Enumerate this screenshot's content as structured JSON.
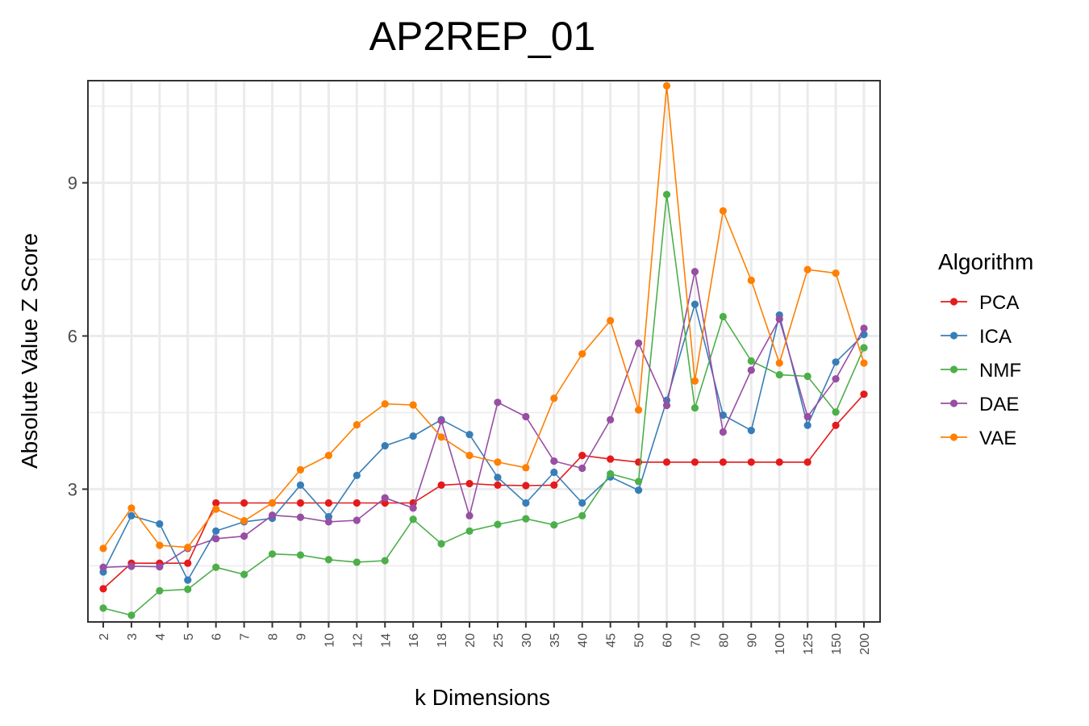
{
  "chart_data": {
    "type": "line",
    "title": "AP2REP_01",
    "xlabel": "k Dimensions",
    "ylabel": "Absolute Value Z Score",
    "categories": [
      "2",
      "3",
      "4",
      "5",
      "6",
      "7",
      "8",
      "9",
      "10",
      "12",
      "14",
      "16",
      "18",
      "20",
      "25",
      "30",
      "35",
      "40",
      "45",
      "50",
      "60",
      "70",
      "80",
      "90",
      "100",
      "125",
      "150",
      "200"
    ],
    "y_ticks": [
      3,
      6,
      9
    ],
    "ylim": [
      0.4,
      11.0
    ],
    "grid": true,
    "legend": {
      "title": "Algorithm",
      "position": "right"
    },
    "series": [
      {
        "name": "PCA",
        "color": "#E41A1C",
        "values": [
          1.05,
          1.55,
          1.55,
          1.55,
          2.73,
          2.73,
          2.73,
          2.73,
          2.73,
          2.73,
          2.73,
          2.73,
          3.08,
          3.11,
          3.08,
          3.07,
          3.08,
          3.66,
          3.59,
          3.53,
          3.53,
          3.53,
          3.53,
          3.53,
          3.53,
          3.53,
          4.25,
          4.86
        ]
      },
      {
        "name": "ICA",
        "color": "#377EB8",
        "values": [
          1.38,
          2.48,
          2.32,
          1.22,
          2.18,
          2.36,
          2.43,
          3.08,
          2.46,
          3.27,
          3.85,
          4.04,
          4.36,
          4.07,
          3.23,
          2.73,
          3.33,
          2.73,
          3.24,
          2.98,
          4.74,
          6.62,
          4.45,
          4.15,
          6.41,
          4.25,
          5.49,
          6.03
        ]
      },
      {
        "name": "NMF",
        "color": "#4DAF4A",
        "values": [
          0.67,
          0.53,
          1.01,
          1.04,
          1.47,
          1.33,
          1.73,
          1.71,
          1.62,
          1.57,
          1.6,
          2.41,
          1.93,
          2.18,
          2.31,
          2.42,
          2.3,
          2.48,
          3.3,
          3.15,
          8.77,
          4.59,
          6.38,
          5.51,
          5.24,
          5.21,
          4.51,
          5.77
        ]
      },
      {
        "name": "DAE",
        "color": "#984EA3",
        "values": [
          1.47,
          1.49,
          1.48,
          1.84,
          2.03,
          2.08,
          2.49,
          2.45,
          2.36,
          2.39,
          2.83,
          2.63,
          4.34,
          2.48,
          4.7,
          4.42,
          3.55,
          3.41,
          4.36,
          5.86,
          4.64,
          7.26,
          4.12,
          5.33,
          6.33,
          4.42,
          5.16,
          6.15
        ]
      },
      {
        "name": "VAE",
        "color": "#FF7F00",
        "values": [
          1.84,
          2.63,
          1.9,
          1.86,
          2.61,
          2.38,
          2.73,
          3.38,
          3.66,
          4.26,
          4.67,
          4.65,
          4.02,
          3.66,
          3.53,
          3.42,
          4.78,
          5.65,
          6.3,
          4.55,
          10.9,
          5.12,
          8.45,
          7.09,
          5.47,
          7.3,
          7.23,
          5.47
        ]
      }
    ]
  }
}
